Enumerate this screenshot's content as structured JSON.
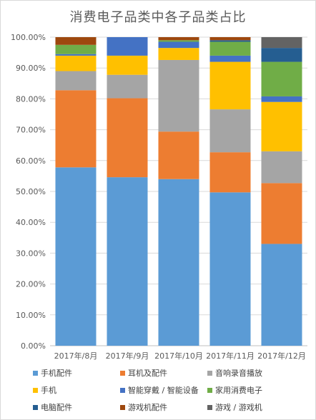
{
  "chart_data": {
    "type": "bar",
    "stacked": true,
    "title": "消费电子品类中各子品类占比",
    "categories": [
      "2017年/8月",
      "2017年/9月",
      "2017年/10月",
      "2017年/11月",
      "2017年/12月"
    ],
    "y_ticks": [
      "0.00%",
      "10.00%",
      "20.00%",
      "30.00%",
      "40.00%",
      "50.00%",
      "60.00%",
      "70.00%",
      "80.00%",
      "90.00%",
      "100.00%"
    ],
    "ylim": [
      0,
      100
    ],
    "grid": true,
    "legend_position": "bottom",
    "series": [
      {
        "name": "手机配件",
        "color": "#5b9bd5",
        "values": [
          57.8,
          54.6,
          54.0,
          49.7,
          33.0
        ]
      },
      {
        "name": "耳机及配件",
        "color": "#ed7d31",
        "values": [
          25.0,
          25.6,
          15.4,
          13.0,
          19.7
        ]
      },
      {
        "name": "音响录音播放",
        "color": "#a5a5a5",
        "values": [
          6.2,
          7.6,
          23.2,
          13.9,
          10.3
        ]
      },
      {
        "name": "手机",
        "color": "#ffc000",
        "values": [
          5.0,
          6.2,
          3.9,
          15.4,
          16.0
        ]
      },
      {
        "name": "智能穿戴 / 智能设备",
        "color": "#4472c4",
        "values": [
          0.5,
          6.0,
          2.0,
          2.0,
          1.8
        ]
      },
      {
        "name": "家用消费电子",
        "color": "#70ad47",
        "values": [
          3.0,
          0.0,
          0.5,
          4.5,
          11.2
        ]
      },
      {
        "name": "电脑配件",
        "color": "#255e91",
        "values": [
          0.0,
          0.0,
          0.0,
          0.5,
          4.5
        ]
      },
      {
        "name": "游戏机配件",
        "color": "#9e480e",
        "values": [
          2.5,
          0.0,
          1.0,
          1.0,
          0.0
        ]
      },
      {
        "name": "游戏 / 游戏机",
        "color": "#636363",
        "values": [
          0.0,
          0.0,
          0.0,
          0.0,
          3.5
        ]
      }
    ]
  }
}
